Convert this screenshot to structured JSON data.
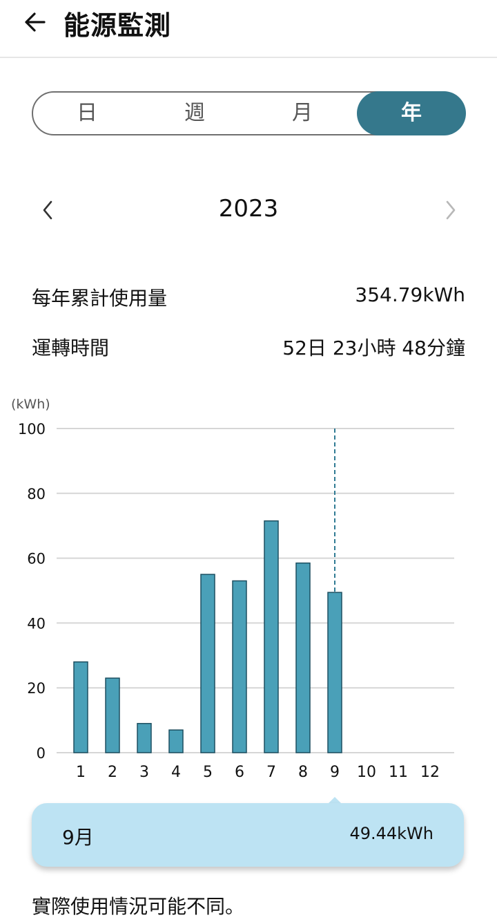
{
  "header": {
    "title": "能源監測",
    "back_icon": "arrow-left-icon"
  },
  "period_tabs": {
    "items": [
      {
        "label": "日"
      },
      {
        "label": "週"
      },
      {
        "label": "月"
      },
      {
        "label": "年"
      }
    ],
    "selected": "年"
  },
  "period_nav": {
    "year": "2023",
    "prev_icon": "chevron-left-icon",
    "next_icon": "chevron-right-icon"
  },
  "stats": {
    "annual_usage_label": "每年累計使用量",
    "annual_usage_value": "354.79kWh",
    "runtime_label": "運轉時間",
    "runtime_value": "52日 23小時 48分鐘"
  },
  "chart_data": {
    "type": "bar",
    "unit_label": "(kWh)",
    "categories": [
      "1",
      "2",
      "3",
      "4",
      "5",
      "6",
      "7",
      "8",
      "9",
      "10",
      "11",
      "12"
    ],
    "values": [
      28,
      23,
      9,
      7,
      55,
      53,
      71.5,
      58.5,
      49.44,
      null,
      null,
      null
    ],
    "ylim": [
      0,
      100
    ],
    "yticks": [
      0,
      20,
      40,
      60,
      80,
      100
    ],
    "grid": true,
    "selected_category": "9",
    "colors": {
      "bar": "#4aa0b8",
      "bar_border": "#1d4f60",
      "grid": "#d6d6d6",
      "marker": "#2f7a93"
    }
  },
  "tooltip": {
    "month": "9月",
    "value": "49.44kWh"
  },
  "colors": {
    "accent": "#35788c",
    "tooltip_bg": "#bde3f3"
  },
  "footnote": "實際使用情況可能不同。"
}
